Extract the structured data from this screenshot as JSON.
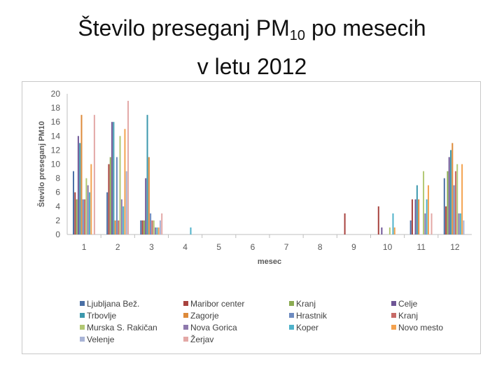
{
  "slide": {
    "title_prefix": "Število preseganj PM",
    "title_subscript": "10",
    "title_suffix": " po mesecih",
    "title_line2": "v letu 2012"
  },
  "chart_data": {
    "type": "bar",
    "title": "",
    "xlabel": "mesec",
    "ylabel": "Število preseganj PM10",
    "ylim": [
      0,
      20
    ],
    "yticks": [
      "0",
      "2",
      "4",
      "6",
      "8",
      "10",
      "12",
      "14",
      "16",
      "18",
      "20"
    ],
    "grid": false,
    "legend_position": "bottom",
    "categories": [
      "1",
      "2",
      "3",
      "4",
      "5",
      "6",
      "7",
      "8",
      "9",
      "10",
      "11",
      "12"
    ],
    "series": [
      {
        "name": "Ljubljana Bež.",
        "color": "#4a6fa5",
        "values": [
          9,
          6,
          2,
          0,
          0,
          0,
          0,
          0,
          0,
          0,
          2,
          8
        ]
      },
      {
        "name": "Maribor center",
        "color": "#a8433f",
        "values": [
          6,
          10,
          2,
          0,
          0,
          0,
          0,
          0,
          3,
          4,
          5,
          4
        ]
      },
      {
        "name": "Kranj",
        "color": "#8bab52",
        "values": [
          5,
          11,
          2,
          0,
          0,
          0,
          0,
          0,
          0,
          0,
          0,
          9
        ]
      },
      {
        "name": "Celje",
        "color": "#6f5696",
        "values": [
          14,
          16,
          8,
          0,
          0,
          0,
          0,
          0,
          0,
          1,
          5,
          11
        ]
      },
      {
        "name": "Trbovlje",
        "color": "#3c98ad",
        "values": [
          13,
          16,
          17,
          0,
          0,
          0,
          0,
          0,
          0,
          0,
          7,
          12
        ]
      },
      {
        "name": "Zagorje",
        "color": "#dd8a3a",
        "values": [
          17,
          2,
          11,
          0,
          0,
          0,
          0,
          0,
          0,
          0,
          5,
          13
        ]
      },
      {
        "name": "Hrastnik",
        "color": "#6d8bc0",
        "values": [
          5,
          11,
          3,
          0,
          0,
          0,
          0,
          0,
          0,
          0,
          0,
          7
        ]
      },
      {
        "name": "Kranj",
        "color": "#c76a67",
        "values": [
          5,
          2,
          2,
          0,
          0,
          0,
          0,
          0,
          0,
          0,
          0,
          9
        ]
      },
      {
        "name": "Murska S. Rakičan",
        "color": "#b2c873",
        "values": [
          8,
          14,
          2,
          0,
          0,
          0,
          0,
          0,
          0,
          1,
          9,
          10
        ]
      },
      {
        "name": "Nova Gorica",
        "color": "#8e79ad",
        "values": [
          7,
          5,
          1,
          0,
          0,
          0,
          0,
          0,
          0,
          0,
          3,
          3
        ]
      },
      {
        "name": "Koper",
        "color": "#4fb2ca",
        "values": [
          6,
          4,
          1,
          1,
          0,
          0,
          0,
          0,
          0,
          3,
          5,
          3
        ]
      },
      {
        "name": "Novo mesto",
        "color": "#f3a24f",
        "values": [
          10,
          15,
          1,
          0,
          0,
          0,
          0,
          0,
          0,
          1,
          7,
          10
        ]
      },
      {
        "name": "Velenje",
        "color": "#a9b4d6",
        "values": [
          0,
          9,
          2,
          0,
          0,
          0,
          0,
          0,
          0,
          0,
          0,
          2
        ]
      },
      {
        "name": "Žerjav",
        "color": "#e3a8a6",
        "values": [
          17,
          19,
          3,
          0,
          0,
          0,
          0,
          0,
          0,
          0,
          3,
          0
        ]
      }
    ]
  }
}
